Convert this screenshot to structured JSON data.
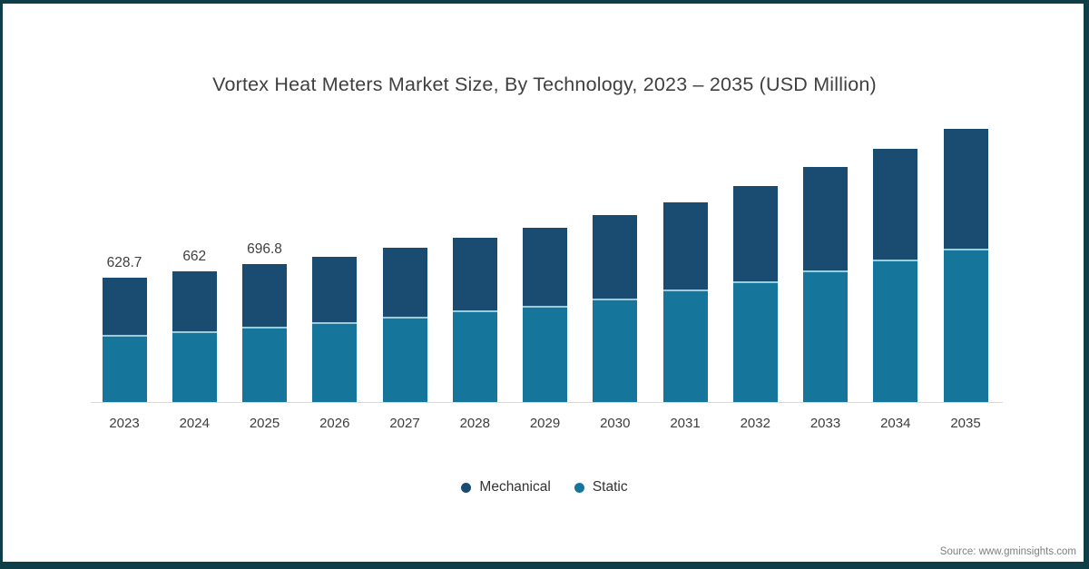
{
  "frame": {
    "border_color": "#0f3e49",
    "background": "#ffffff"
  },
  "title": "Vortex Heat Meters Market Size, By Technology, 2023 – 2035 (USD Million)",
  "source": "Source: www.gminsights.com",
  "legend": [
    {
      "label": "Mechanical",
      "color": "#1a4b70"
    },
    {
      "label": "Static",
      "color": "#16759b"
    }
  ],
  "chart_data": {
    "type": "bar",
    "stacked": true,
    "title": "Vortex Heat Meters Market Size, By Technology, 2023 – 2035 (USD Million)",
    "unit": "USD Million",
    "categories": [
      "2023",
      "2024",
      "2025",
      "2026",
      "2027",
      "2028",
      "2029",
      "2030",
      "2031",
      "2032",
      "2033",
      "2034",
      "2035"
    ],
    "series": [
      {
        "name": "Static",
        "color": "#16759b",
        "stack_order": "bottom",
        "values": [
          340,
          357,
          382,
          404,
          431,
          463,
          488,
          523,
          567,
          610,
          663,
          721,
          774
        ]
      },
      {
        "name": "Mechanical",
        "color": "#1a4b70",
        "stack_order": "top",
        "values": [
          288.7,
          305,
          314.8,
          332,
          348,
          365,
          393,
          420,
          443,
          482,
          523,
          561,
          605
        ]
      }
    ],
    "totals": [
      628.7,
      662,
      696.8,
      736,
      779,
      828,
      881,
      943,
      1010,
      1092,
      1186,
      1282,
      1379
    ],
    "total_labels_shown": [
      "628.7",
      "662",
      "696.8",
      "",
      "",
      "",
      "",
      "",
      "",
      "",
      "",
      "",
      ""
    ],
    "xlabel": "",
    "ylabel": "USD Million",
    "ylim": [
      0,
      1450
    ],
    "gridlines": false,
    "y_axis_visible": false,
    "axis_line_color": "#d9d9d9",
    "legend_position": "bottom"
  }
}
